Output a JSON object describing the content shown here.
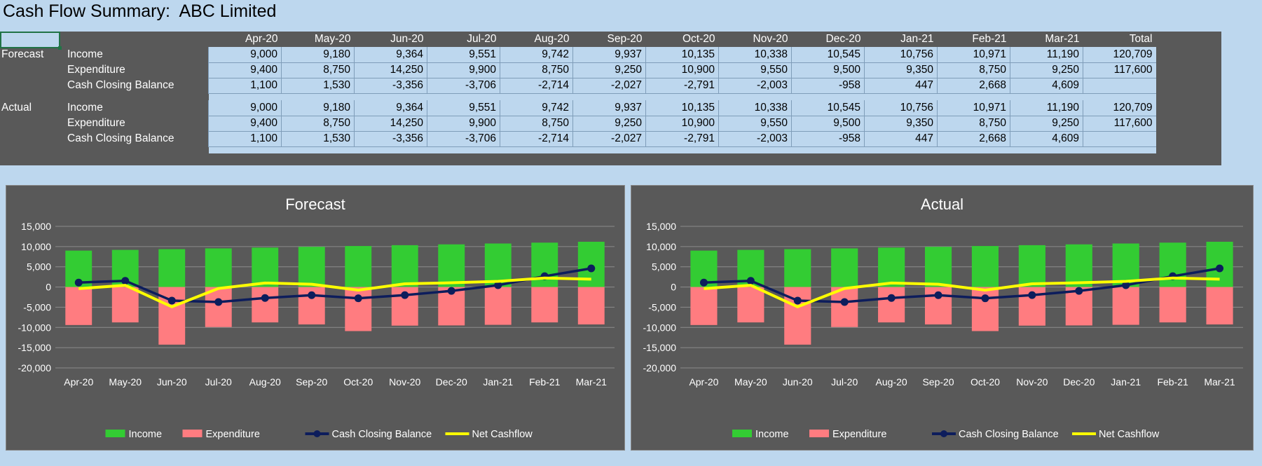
{
  "title": "Cash Flow Summary:  ABC Limited",
  "months": [
    "Apr-20",
    "May-20",
    "Jun-20",
    "Jul-20",
    "Aug-20",
    "Sep-20",
    "Oct-20",
    "Nov-20",
    "Dec-20",
    "Jan-21",
    "Feb-21",
    "Mar-21"
  ],
  "total_label": "Total",
  "sections": [
    {
      "name": "Forecast",
      "rows": [
        {
          "label": "Income",
          "values": [
            "9,000",
            "9,180",
            "9,364",
            "9,551",
            "9,742",
            "9,937",
            "10,135",
            "10,338",
            "10,545",
            "10,756",
            "10,971",
            "11,190"
          ],
          "total": "120,709"
        },
        {
          "label": "Expenditure",
          "values": [
            "9,400",
            "8,750",
            "14,250",
            "9,900",
            "8,750",
            "9,250",
            "10,900",
            "9,550",
            "9,500",
            "9,350",
            "8,750",
            "9,250"
          ],
          "total": "117,600"
        },
        {
          "label": "Cash Closing Balance",
          "values": [
            "1,100",
            "1,530",
            "-3,356",
            "-3,706",
            "-2,714",
            "-2,027",
            "-2,791",
            "-2,003",
            "-958",
            "447",
            "2,668",
            "4,609"
          ],
          "total": ""
        }
      ]
    },
    {
      "name": "Actual",
      "rows": [
        {
          "label": "Income",
          "values": [
            "9,000",
            "9,180",
            "9,364",
            "9,551",
            "9,742",
            "9,937",
            "10,135",
            "10,338",
            "10,545",
            "10,756",
            "10,971",
            "11,190"
          ],
          "total": "120,709"
        },
        {
          "label": "Expenditure",
          "values": [
            "9,400",
            "8,750",
            "14,250",
            "9,900",
            "8,750",
            "9,250",
            "10,900",
            "9,550",
            "9,500",
            "9,350",
            "8,750",
            "9,250"
          ],
          "total": "117,600"
        },
        {
          "label": "Cash Closing Balance",
          "values": [
            "1,100",
            "1,530",
            "-3,356",
            "-3,706",
            "-2,714",
            "-2,027",
            "-2,791",
            "-2,003",
            "-958",
            "447",
            "2,668",
            "4,609"
          ],
          "total": ""
        }
      ]
    }
  ],
  "chart_data": [
    {
      "type": "bar",
      "title": "Forecast",
      "categories": [
        "Apr-20",
        "May-20",
        "Jun-20",
        "Jul-20",
        "Aug-20",
        "Sep-20",
        "Oct-20",
        "Nov-20",
        "Dec-20",
        "Jan-21",
        "Feb-21",
        "Mar-21"
      ],
      "ylim": [
        -20000,
        15000
      ],
      "yticks": [
        "15,000",
        "10,000",
        "5,000",
        "0",
        "-5,000",
        "-10,000",
        "-15,000",
        "-20,000"
      ],
      "grid": true,
      "legend_position": "bottom",
      "series": [
        {
          "name": "Income",
          "kind": "bar",
          "color": "#33cc33",
          "values": [
            9000,
            9180,
            9364,
            9551,
            9742,
            9937,
            10135,
            10338,
            10545,
            10756,
            10971,
            11190
          ]
        },
        {
          "name": "Expenditure",
          "kind": "bar",
          "color": "#ff7c80",
          "values": [
            -9400,
            -8750,
            -14250,
            -9900,
            -8750,
            -9250,
            -10900,
            -9550,
            -9500,
            -9350,
            -8750,
            -9250
          ]
        },
        {
          "name": "Cash Closing Balance",
          "kind": "line-marker",
          "color": "#0d1d5c",
          "values": [
            1100,
            1530,
            -3356,
            -3706,
            -2714,
            -2027,
            -2791,
            -2003,
            -958,
            447,
            2668,
            4609
          ]
        },
        {
          "name": "Net Cashflow",
          "kind": "line",
          "color": "#ffff00",
          "values": [
            -400,
            430,
            -4886,
            -349,
            992,
            687,
            -765,
            788,
            1045,
            1406,
            2221,
            1940
          ]
        }
      ]
    },
    {
      "type": "bar",
      "title": "Actual",
      "categories": [
        "Apr-20",
        "May-20",
        "Jun-20",
        "Jul-20",
        "Aug-20",
        "Sep-20",
        "Oct-20",
        "Nov-20",
        "Dec-20",
        "Jan-21",
        "Feb-21",
        "Mar-21"
      ],
      "ylim": [
        -20000,
        15000
      ],
      "yticks": [
        "15,000",
        "10,000",
        "5,000",
        "0",
        "-5,000",
        "-10,000",
        "-15,000",
        "-20,000"
      ],
      "grid": true,
      "legend_position": "bottom",
      "series": [
        {
          "name": "Income",
          "kind": "bar",
          "color": "#33cc33",
          "values": [
            9000,
            9180,
            9364,
            9551,
            9742,
            9937,
            10135,
            10338,
            10545,
            10756,
            10971,
            11190
          ]
        },
        {
          "name": "Expenditure",
          "kind": "bar",
          "color": "#ff7c80",
          "values": [
            -9400,
            -8750,
            -14250,
            -9900,
            -8750,
            -9250,
            -10900,
            -9550,
            -9500,
            -9350,
            -8750,
            -9250
          ]
        },
        {
          "name": "Cash Closing Balance",
          "kind": "line-marker",
          "color": "#0d1d5c",
          "values": [
            1100,
            1530,
            -3356,
            -3706,
            -2714,
            -2027,
            -2791,
            -2003,
            -958,
            447,
            2668,
            4609
          ]
        },
        {
          "name": "Net Cashflow",
          "kind": "line",
          "color": "#ffff00",
          "values": [
            -400,
            430,
            -4886,
            -349,
            992,
            687,
            -765,
            788,
            1045,
            1406,
            2221,
            1940
          ]
        }
      ]
    }
  ]
}
